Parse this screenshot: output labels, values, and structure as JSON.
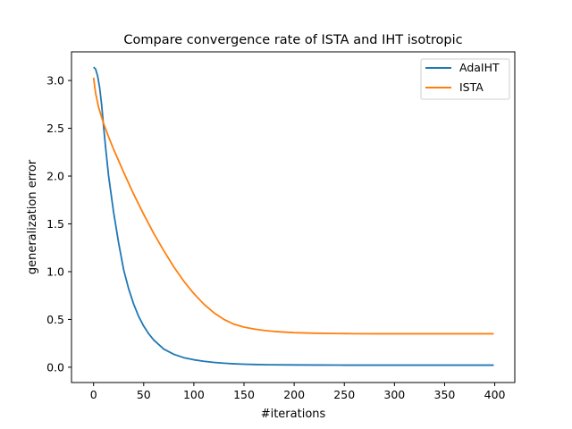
{
  "chart_data": {
    "type": "line",
    "title": "Compare convergence rate of ISTA and IHT isotropic",
    "xlabel": "#iterations",
    "ylabel": "generalization error",
    "xlim": [
      -22,
      420
    ],
    "ylim": [
      -0.16,
      3.3
    ],
    "xticks": [
      0,
      50,
      100,
      150,
      200,
      250,
      300,
      350,
      400
    ],
    "yticks": [
      0.0,
      0.5,
      1.0,
      1.5,
      2.0,
      2.5,
      3.0
    ],
    "xtick_labels": [
      "0",
      "50",
      "100",
      "150",
      "200",
      "250",
      "300",
      "350",
      "400"
    ],
    "ytick_labels": [
      "0.0",
      "0.5",
      "1.0",
      "1.5",
      "2.0",
      "2.5",
      "3.0"
    ],
    "grid": false,
    "legend_position": "top-right",
    "series": [
      {
        "name": "AdaIHT",
        "color": "#1f77b4",
        "x": [
          0,
          2,
          4,
          6,
          8,
          10,
          12,
          15,
          20,
          25,
          30,
          35,
          40,
          45,
          50,
          55,
          60,
          70,
          80,
          90,
          100,
          110,
          120,
          130,
          140,
          150,
          160,
          175,
          200,
          225,
          250,
          275,
          300,
          325,
          350,
          375,
          399
        ],
        "y": [
          3.14,
          3.12,
          3.05,
          2.93,
          2.75,
          2.52,
          2.3,
          2.0,
          1.62,
          1.3,
          1.02,
          0.82,
          0.66,
          0.53,
          0.43,
          0.35,
          0.285,
          0.19,
          0.135,
          0.1,
          0.078,
          0.062,
          0.05,
          0.042,
          0.036,
          0.032,
          0.029,
          0.026,
          0.024,
          0.023,
          0.022,
          0.022,
          0.022,
          0.022,
          0.022,
          0.022,
          0.022
        ]
      },
      {
        "name": "ISTA",
        "color": "#ff7f0e",
        "x": [
          0,
          2,
          5,
          10,
          15,
          20,
          25,
          30,
          40,
          50,
          60,
          70,
          80,
          90,
          100,
          110,
          120,
          130,
          140,
          150,
          160,
          170,
          180,
          190,
          200,
          220,
          240,
          260,
          280,
          300,
          325,
          350,
          375,
          399
        ],
        "y": [
          3.03,
          2.87,
          2.72,
          2.55,
          2.41,
          2.28,
          2.16,
          2.04,
          1.81,
          1.6,
          1.4,
          1.22,
          1.05,
          0.9,
          0.77,
          0.66,
          0.57,
          0.5,
          0.45,
          0.42,
          0.4,
          0.385,
          0.375,
          0.368,
          0.362,
          0.356,
          0.353,
          0.351,
          0.35,
          0.35,
          0.35,
          0.35,
          0.35,
          0.35
        ]
      }
    ]
  }
}
